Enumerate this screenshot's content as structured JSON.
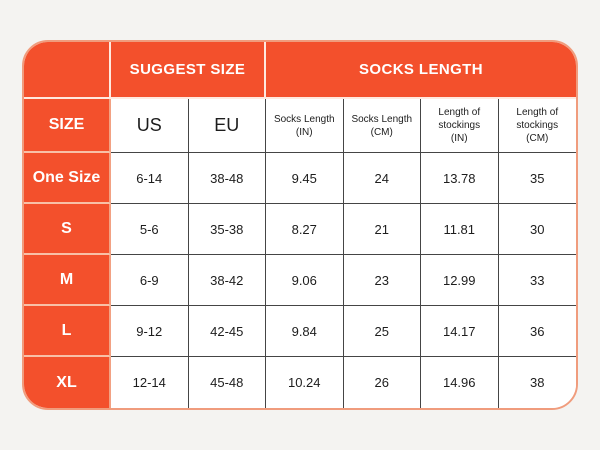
{
  "chart_data": {
    "type": "table",
    "header_groups": [
      {
        "label": "SUGGEST SIZE",
        "span": 2
      },
      {
        "label": "SOCKS LENGTH",
        "span": 4
      }
    ],
    "size_column_header": "SIZE",
    "column_headers": [
      "US",
      "EU",
      "Socks Length\n(IN)",
      "Socks Length\n(CM)",
      "Length of\nstockings\n(IN)",
      "Length of\nstockings\n(CM)"
    ],
    "rows": [
      {
        "label": "One Size",
        "values": [
          "6-14",
          "38-48",
          "9.45",
          "24",
          "13.78",
          "35"
        ]
      },
      {
        "label": "S",
        "values": [
          "5-6",
          "35-38",
          "8.27",
          "21",
          "11.81",
          "30"
        ]
      },
      {
        "label": "M",
        "values": [
          "6-9",
          "38-42",
          "9.06",
          "23",
          "12.99",
          "33"
        ]
      },
      {
        "label": "L",
        "values": [
          "9-12",
          "42-45",
          "9.84",
          "25",
          "14.17",
          "36"
        ]
      },
      {
        "label": "XL",
        "values": [
          "12-14",
          "45-48",
          "10.24",
          "26",
          "14.96",
          "38"
        ]
      }
    ],
    "layout_hints": {
      "grid": "on",
      "legend": "none"
    }
  },
  "colors": {
    "orange": "#F3502C",
    "grid_dark": "#454545",
    "outline_salmon": "#F09C7D",
    "orange_divider_light": "#FFE9DF",
    "orange_divider_salmon": "#F8C0A7",
    "background": "#F4F3F1",
    "text_dark": "#1D1D1D",
    "text_light": "#FFFFFF"
  }
}
